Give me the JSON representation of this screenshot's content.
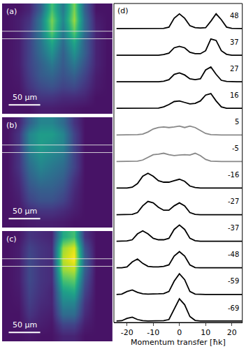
{
  "chart_data": [
    {
      "type": "heatmap",
      "label": "(a)",
      "xlim": [
        0,
        175
      ],
      "ylim": [
        0,
        175
      ],
      "zlim": [
        0,
        1
      ],
      "tick_labels": false,
      "slice": [
        44,
        56
      ],
      "scale_bar": {
        "length": 50,
        "label": "50 µm"
      },
      "cells": [
        [
          0.05,
          0.05,
          0.1,
          0.3,
          0.7,
          0.4,
          0.8,
          0.3,
          0.05,
          0.05
        ],
        [
          0.05,
          0.08,
          0.15,
          0.4,
          0.8,
          0.45,
          0.85,
          0.35,
          0.08,
          0.05
        ],
        [
          0.05,
          0.08,
          0.18,
          0.4,
          0.75,
          0.4,
          0.75,
          0.35,
          0.1,
          0.05
        ],
        [
          0.05,
          0.08,
          0.2,
          0.38,
          0.6,
          0.35,
          0.6,
          0.3,
          0.1,
          0.05
        ],
        [
          0.05,
          0.08,
          0.2,
          0.35,
          0.5,
          0.3,
          0.5,
          0.3,
          0.1,
          0.05
        ],
        [
          0.05,
          0.08,
          0.2,
          0.3,
          0.4,
          0.28,
          0.4,
          0.25,
          0.1,
          0.05
        ],
        [
          0.05,
          0.07,
          0.18,
          0.28,
          0.32,
          0.25,
          0.3,
          0.2,
          0.08,
          0.05
        ],
        [
          0.05,
          0.06,
          0.15,
          0.22,
          0.25,
          0.2,
          0.22,
          0.15,
          0.07,
          0.05
        ],
        [
          0.05,
          0.05,
          0.1,
          0.15,
          0.15,
          0.12,
          0.12,
          0.1,
          0.05,
          0.05
        ],
        [
          0.05,
          0.05,
          0.05,
          0.08,
          0.08,
          0.07,
          0.06,
          0.05,
          0.05,
          0.05
        ]
      ]
    },
    {
      "type": "heatmap",
      "label": "(b)",
      "xlim": [
        0,
        175
      ],
      "ylim": [
        0,
        175
      ],
      "zlim": [
        0,
        1
      ],
      "tick_labels": false,
      "slice": [
        44,
        56
      ],
      "scale_bar": {
        "length": 50,
        "label": "50 µm"
      },
      "cells": [
        [
          0.05,
          0.1,
          0.3,
          0.45,
          0.45,
          0.35,
          0.15,
          0.05,
          0.05,
          0.05
        ],
        [
          0.05,
          0.15,
          0.45,
          0.55,
          0.55,
          0.45,
          0.2,
          0.05,
          0.05,
          0.05
        ],
        [
          0.05,
          0.15,
          0.45,
          0.55,
          0.5,
          0.45,
          0.2,
          0.05,
          0.05,
          0.05
        ],
        [
          0.05,
          0.15,
          0.4,
          0.5,
          0.45,
          0.4,
          0.2,
          0.05,
          0.05,
          0.05
        ],
        [
          0.05,
          0.15,
          0.35,
          0.45,
          0.4,
          0.35,
          0.2,
          0.05,
          0.05,
          0.05
        ],
        [
          0.05,
          0.12,
          0.3,
          0.38,
          0.35,
          0.3,
          0.15,
          0.05,
          0.05,
          0.05
        ],
        [
          0.05,
          0.1,
          0.25,
          0.3,
          0.3,
          0.25,
          0.12,
          0.05,
          0.05,
          0.05
        ],
        [
          0.05,
          0.08,
          0.2,
          0.25,
          0.25,
          0.2,
          0.1,
          0.05,
          0.05,
          0.05
        ],
        [
          0.05,
          0.06,
          0.12,
          0.15,
          0.15,
          0.12,
          0.08,
          0.05,
          0.05,
          0.05
        ],
        [
          0.05,
          0.05,
          0.07,
          0.08,
          0.08,
          0.07,
          0.05,
          0.05,
          0.05,
          0.05
        ]
      ]
    },
    {
      "type": "heatmap",
      "label": "(c)",
      "xlim": [
        0,
        175
      ],
      "ylim": [
        0,
        175
      ],
      "zlim": [
        0,
        1
      ],
      "tick_labels": false,
      "slice": [
        44,
        56
      ],
      "scale_bar": {
        "length": 50,
        "label": "50 µm"
      },
      "cells": [
        [
          0.05,
          0.06,
          0.15,
          0.12,
          0.1,
          0.6,
          0.7,
          0.15,
          0.05,
          0.05
        ],
        [
          0.05,
          0.08,
          0.2,
          0.15,
          0.12,
          0.85,
          0.95,
          0.25,
          0.05,
          0.05
        ],
        [
          0.05,
          0.08,
          0.22,
          0.15,
          0.12,
          0.9,
          1.0,
          0.3,
          0.05,
          0.05
        ],
        [
          0.05,
          0.08,
          0.22,
          0.15,
          0.12,
          0.85,
          0.9,
          0.3,
          0.05,
          0.05
        ],
        [
          0.05,
          0.08,
          0.22,
          0.15,
          0.12,
          0.7,
          0.75,
          0.25,
          0.05,
          0.05
        ],
        [
          0.05,
          0.07,
          0.2,
          0.14,
          0.1,
          0.55,
          0.6,
          0.2,
          0.05,
          0.05
        ],
        [
          0.05,
          0.06,
          0.18,
          0.12,
          0.1,
          0.45,
          0.45,
          0.15,
          0.05,
          0.05
        ],
        [
          0.05,
          0.05,
          0.15,
          0.1,
          0.08,
          0.35,
          0.35,
          0.12,
          0.05,
          0.05
        ],
        [
          0.05,
          0.05,
          0.1,
          0.08,
          0.06,
          0.2,
          0.2,
          0.08,
          0.05,
          0.05
        ],
        [
          0.05,
          0.05,
          0.06,
          0.05,
          0.05,
          0.1,
          0.1,
          0.05,
          0.05,
          0.05
        ]
      ]
    },
    {
      "type": "line",
      "label": "(d)",
      "x_label": "Momentum transfer [ħk]",
      "tick_labels": "x",
      "xlim": [
        -25,
        24
      ],
      "xticks": [
        -20,
        -10,
        0,
        10,
        20
      ],
      "ylim": [
        0,
        0.9
      ],
      "x": [
        -24,
        -22,
        -20,
        -18,
        -16,
        -14,
        -12,
        -10,
        -8,
        -6,
        -4,
        -2,
        0,
        2,
        4,
        6,
        8,
        10,
        12,
        14,
        16,
        18,
        20,
        22,
        24
      ],
      "series": [
        {
          "name": "48",
          "color": "#000000",
          "values": [
            0.05,
            0.05,
            0.05,
            0.05,
            0.05,
            0.05,
            0.05,
            0.05,
            0.05,
            0.06,
            0.1,
            0.4,
            0.55,
            0.4,
            0.15,
            0.08,
            0.07,
            0.08,
            0.3,
            0.55,
            0.35,
            0.1,
            0.06,
            0.05,
            0.05
          ]
        },
        {
          "name": "37",
          "color": "#000000",
          "values": [
            0.05,
            0.05,
            0.05,
            0.05,
            0.05,
            0.05,
            0.05,
            0.05,
            0.05,
            0.07,
            0.12,
            0.3,
            0.35,
            0.3,
            0.15,
            0.1,
            0.1,
            0.2,
            0.6,
            0.55,
            0.2,
            0.08,
            0.05,
            0.05,
            0.05
          ]
        },
        {
          "name": "27",
          "color": "#000000",
          "values": [
            0.05,
            0.05,
            0.05,
            0.05,
            0.05,
            0.05,
            0.05,
            0.05,
            0.05,
            0.07,
            0.12,
            0.3,
            0.35,
            0.28,
            0.15,
            0.12,
            0.15,
            0.45,
            0.55,
            0.3,
            0.1,
            0.06,
            0.05,
            0.05,
            0.05
          ]
        },
        {
          "name": "16",
          "color": "#000000",
          "values": [
            0.05,
            0.05,
            0.05,
            0.05,
            0.05,
            0.05,
            0.05,
            0.05,
            0.06,
            0.1,
            0.18,
            0.28,
            0.3,
            0.25,
            0.2,
            0.22,
            0.3,
            0.5,
            0.55,
            0.3,
            0.1,
            0.05,
            0.05,
            0.05,
            0.05
          ]
        },
        {
          "name": "5",
          "color": "#888888",
          "values": [
            0.05,
            0.05,
            0.05,
            0.05,
            0.06,
            0.08,
            0.15,
            0.25,
            0.3,
            0.32,
            0.3,
            0.32,
            0.35,
            0.3,
            0.35,
            0.3,
            0.2,
            0.1,
            0.06,
            0.05,
            0.05,
            0.05,
            0.05,
            0.05,
            0.05
          ]
        },
        {
          "name": "-5",
          "color": "#888888",
          "values": [
            0.05,
            0.05,
            0.05,
            0.05,
            0.06,
            0.1,
            0.2,
            0.28,
            0.3,
            0.33,
            0.28,
            0.25,
            0.27,
            0.28,
            0.27,
            0.33,
            0.25,
            0.12,
            0.06,
            0.05,
            0.05,
            0.05,
            0.05,
            0.05,
            0.05
          ]
        },
        {
          "name": "-16",
          "color": "#000000",
          "values": [
            0.05,
            0.05,
            0.05,
            0.08,
            0.2,
            0.45,
            0.55,
            0.45,
            0.3,
            0.25,
            0.25,
            0.3,
            0.35,
            0.28,
            0.12,
            0.07,
            0.05,
            0.05,
            0.05,
            0.05,
            0.05,
            0.05,
            0.05,
            0.05,
            0.05
          ]
        },
        {
          "name": "-27",
          "color": "#000000",
          "values": [
            0.05,
            0.05,
            0.05,
            0.06,
            0.12,
            0.35,
            0.5,
            0.45,
            0.3,
            0.2,
            0.2,
            0.35,
            0.45,
            0.35,
            0.12,
            0.06,
            0.05,
            0.05,
            0.05,
            0.05,
            0.05,
            0.05,
            0.05,
            0.05,
            0.05
          ]
        },
        {
          "name": "-37",
          "color": "#000000",
          "values": [
            0.05,
            0.05,
            0.06,
            0.1,
            0.3,
            0.4,
            0.3,
            0.15,
            0.1,
            0.1,
            0.15,
            0.45,
            0.6,
            0.45,
            0.15,
            0.07,
            0.05,
            0.05,
            0.05,
            0.05,
            0.05,
            0.05,
            0.05,
            0.05,
            0.05
          ]
        },
        {
          "name": "-48",
          "color": "#000000",
          "values": [
            0.05,
            0.05,
            0.08,
            0.25,
            0.35,
            0.2,
            0.1,
            0.08,
            0.08,
            0.1,
            0.15,
            0.45,
            0.6,
            0.45,
            0.15,
            0.06,
            0.05,
            0.05,
            0.05,
            0.05,
            0.05,
            0.05,
            0.05,
            0.05,
            0.05
          ]
        },
        {
          "name": "-59",
          "color": "#000000",
          "values": [
            0.05,
            0.06,
            0.15,
            0.2,
            0.12,
            0.07,
            0.06,
            0.06,
            0.07,
            0.08,
            0.15,
            0.5,
            0.75,
            0.55,
            0.15,
            0.06,
            0.05,
            0.05,
            0.05,
            0.05,
            0.05,
            0.05,
            0.05,
            0.05,
            0.05
          ]
        },
        {
          "name": "-69",
          "color": "#000000",
          "values": [
            0.05,
            0.06,
            0.14,
            0.18,
            0.1,
            0.06,
            0.05,
            0.05,
            0.05,
            0.06,
            0.1,
            0.45,
            0.8,
            0.6,
            0.2,
            0.07,
            0.05,
            0.05,
            0.05,
            0.05,
            0.05,
            0.05,
            0.05,
            0.05,
            0.05
          ]
        }
      ]
    }
  ]
}
